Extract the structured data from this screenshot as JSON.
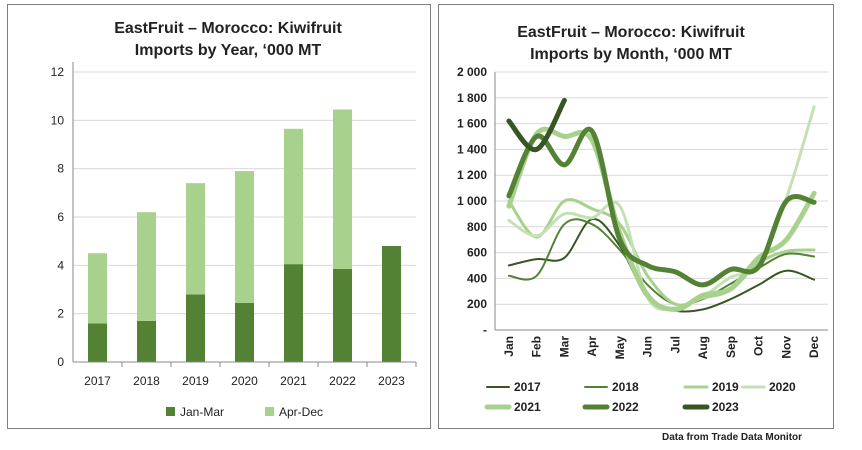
{
  "source_note": "Data from Trade Data Monitor",
  "chart_data": [
    {
      "type": "bar",
      "stacked": true,
      "title_lines": [
        "EastFruit – Morocco: Kiwifruit",
        "Imports by Year, ‘000 MT"
      ],
      "categories": [
        "2017",
        "2018",
        "2019",
        "2020",
        "2021",
        "2022",
        "2023"
      ],
      "ylim": [
        0,
        12
      ],
      "yticks": [
        "0",
        "2",
        "4",
        "6",
        "8",
        "10",
        "12"
      ],
      "grid": true,
      "legend_position": "bottom",
      "series": [
        {
          "name": "Jan-Mar",
          "color": "#548235",
          "values": [
            1.6,
            1.7,
            2.8,
            2.45,
            4.05,
            3.85,
            4.8
          ]
        },
        {
          "name": "Apr-Dec",
          "color": "#a9d18e",
          "values": [
            2.9,
            4.5,
            4.6,
            5.45,
            5.6,
            6.6,
            null
          ]
        }
      ]
    },
    {
      "type": "line",
      "smooth": true,
      "title_lines": [
        "EastFruit – Morocco: Kiwifruit",
        "Imports by Month, ‘000 MT"
      ],
      "categories": [
        "Jan",
        "Feb",
        "Mar",
        "Apr",
        "May",
        "Jun",
        "Jul",
        "Aug",
        "Sep",
        "Oct",
        "Nov",
        "Dec"
      ],
      "ylim": [
        0,
        2000
      ],
      "yticks": [
        "-",
        "200",
        "400",
        "600",
        "800",
        "1 000",
        "1 200",
        "1 400",
        "1 600",
        "1 800",
        "2 000"
      ],
      "grid": true,
      "legend_position": "bottom",
      "series": [
        {
          "name": "2017",
          "color": "#375623",
          "width": 2,
          "values": [
            500,
            550,
            560,
            860,
            650,
            250,
            150,
            160,
            240,
            350,
            460,
            390
          ]
        },
        {
          "name": "2018",
          "color": "#548235",
          "width": 2,
          "values": [
            420,
            420,
            820,
            820,
            620,
            350,
            200,
            240,
            360,
            480,
            590,
            570
          ]
        },
        {
          "name": "2019",
          "color": "#a9d18e",
          "width": 3,
          "values": [
            1000,
            720,
            1000,
            940,
            820,
            420,
            200,
            250,
            310,
            520,
            610,
            620
          ]
        },
        {
          "name": "2020",
          "color": "#c5e0b4",
          "width": 3,
          "values": [
            850,
            730,
            900,
            870,
            960,
            250,
            170,
            260,
            410,
            500,
            1020,
            1730
          ]
        },
        {
          "name": "2021",
          "color": "#a9d18e",
          "width": 5,
          "values": [
            960,
            1520,
            1500,
            1470,
            750,
            270,
            160,
            270,
            320,
            560,
            700,
            1060
          ]
        },
        {
          "name": "2022",
          "color": "#548235",
          "width": 5,
          "values": [
            1040,
            1500,
            1280,
            1540,
            700,
            500,
            450,
            350,
            470,
            490,
            1000,
            990
          ]
        },
        {
          "name": "2023",
          "color": "#375623",
          "width": 5,
          "values": [
            1620,
            1400,
            1780,
            null,
            null,
            null,
            null,
            null,
            null,
            null,
            null,
            null
          ]
        }
      ]
    }
  ]
}
